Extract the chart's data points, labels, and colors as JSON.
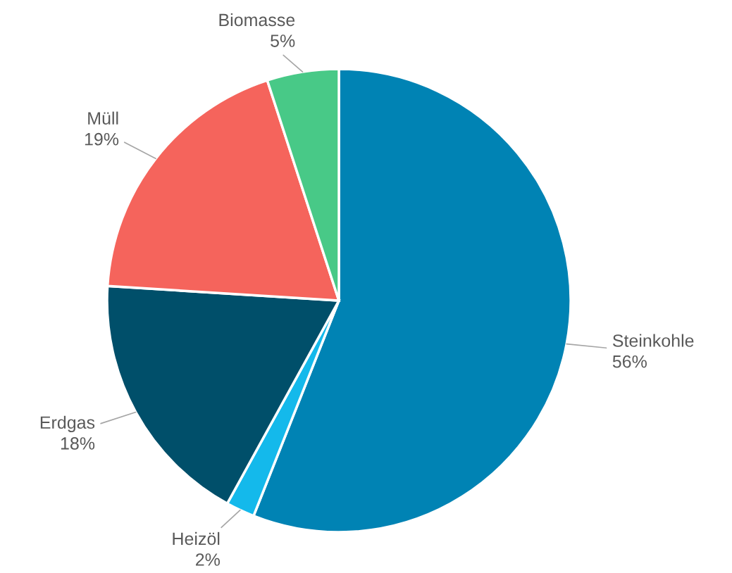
{
  "chart_data": {
    "type": "pie",
    "categories": [
      "Steinkohle",
      "Heizöl",
      "Erdgas",
      "Müll",
      "Biomasse"
    ],
    "values": [
      56,
      2,
      18,
      19,
      5
    ],
    "value_labels": [
      "56%",
      "2%",
      "18%",
      "19%",
      "5%"
    ],
    "colors": [
      "#0083b4",
      "#14b9eb",
      "#004f6a",
      "#f5645c",
      "#48c987"
    ],
    "legend": false
  }
}
